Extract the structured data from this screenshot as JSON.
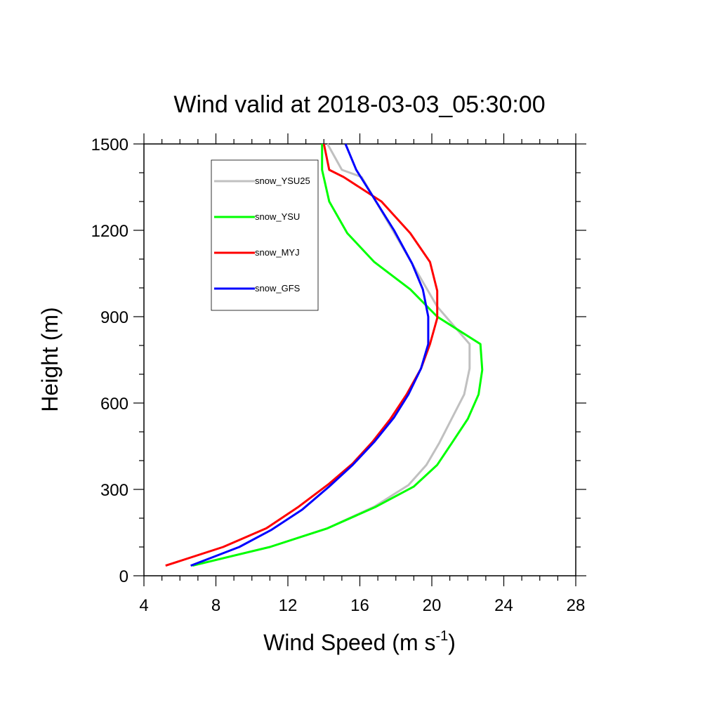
{
  "chart_data": {
    "type": "line",
    "title": "Wind valid at 2018-03-03_05:30:00",
    "xlabel": "Wind Speed (m s",
    "xlabel_sup": "-1",
    "xlabel_end": ")",
    "ylabel": "Height (m)",
    "xlim": [
      4,
      28
    ],
    "ylim": [
      0,
      1500
    ],
    "x_ticks": [
      4,
      8,
      12,
      16,
      20,
      24,
      28
    ],
    "y_ticks": [
      0,
      300,
      600,
      900,
      1200,
      1500
    ],
    "x_tick_labels": [
      "4",
      "8",
      "12",
      "16",
      "20",
      "24",
      "28"
    ],
    "y_tick_labels": [
      "0",
      "300",
      "600",
      "900",
      "1200",
      "1500"
    ],
    "grid": false,
    "legend_position": "top-left",
    "series": [
      {
        "name": "snow_YSU25",
        "color": "#c0c0c0",
        "points": [
          [
            6.7,
            35
          ],
          [
            9,
            70
          ],
          [
            11,
            100
          ],
          [
            14.2,
            165
          ],
          [
            16.8,
            240
          ],
          [
            18.7,
            315
          ],
          [
            19.7,
            385
          ],
          [
            20.4,
            460
          ],
          [
            21.1,
            545
          ],
          [
            21.8,
            630
          ],
          [
            22.1,
            720
          ],
          [
            22.1,
            805
          ],
          [
            20.3,
            935
          ],
          [
            18.9,
            1085
          ],
          [
            17.5,
            1235
          ],
          [
            16.1,
            1385
          ],
          [
            15,
            1410
          ],
          [
            14.2,
            1500
          ]
        ]
      },
      {
        "name": "snow_YSU",
        "color": "#00ff00",
        "points": [
          [
            6.7,
            35
          ],
          [
            9,
            70
          ],
          [
            11,
            100
          ],
          [
            14.2,
            165
          ],
          [
            16.9,
            240
          ],
          [
            19,
            310
          ],
          [
            20.3,
            385
          ],
          [
            21.1,
            460
          ],
          [
            22,
            545
          ],
          [
            22.6,
            630
          ],
          [
            22.8,
            715
          ],
          [
            22.7,
            805
          ],
          [
            20.3,
            900
          ],
          [
            18.8,
            995
          ],
          [
            16.8,
            1090
          ],
          [
            15.3,
            1190
          ],
          [
            14.3,
            1300
          ],
          [
            13.9,
            1410
          ],
          [
            13.9,
            1500
          ]
        ]
      },
      {
        "name": "snow_MYJ",
        "color": "#ff0000",
        "points": [
          [
            5.2,
            35
          ],
          [
            8.4,
            100
          ],
          [
            10.8,
            165
          ],
          [
            12.6,
            240
          ],
          [
            14.3,
            320
          ],
          [
            15.6,
            390
          ],
          [
            16.7,
            465
          ],
          [
            17.7,
            545
          ],
          [
            18.6,
            630
          ],
          [
            19.4,
            720
          ],
          [
            19.9,
            805
          ],
          [
            20.3,
            895
          ],
          [
            20.3,
            990
          ],
          [
            19.9,
            1090
          ],
          [
            18.8,
            1190
          ],
          [
            17.2,
            1300
          ],
          [
            15.1,
            1385
          ],
          [
            14.3,
            1410
          ],
          [
            14,
            1500
          ]
        ]
      },
      {
        "name": "snow_GFS",
        "color": "#0000ff",
        "points": [
          [
            6.6,
            35
          ],
          [
            9.3,
            100
          ],
          [
            11.1,
            160
          ],
          [
            12.8,
            230
          ],
          [
            14.3,
            310
          ],
          [
            15.6,
            385
          ],
          [
            16.8,
            465
          ],
          [
            17.9,
            550
          ],
          [
            18.7,
            630
          ],
          [
            19.4,
            720
          ],
          [
            19.8,
            805
          ],
          [
            19.8,
            900
          ],
          [
            19.5,
            995
          ],
          [
            18.9,
            1085
          ],
          [
            17.9,
            1200
          ],
          [
            16.9,
            1300
          ],
          [
            15.8,
            1410
          ],
          [
            15.2,
            1500
          ]
        ]
      }
    ]
  }
}
